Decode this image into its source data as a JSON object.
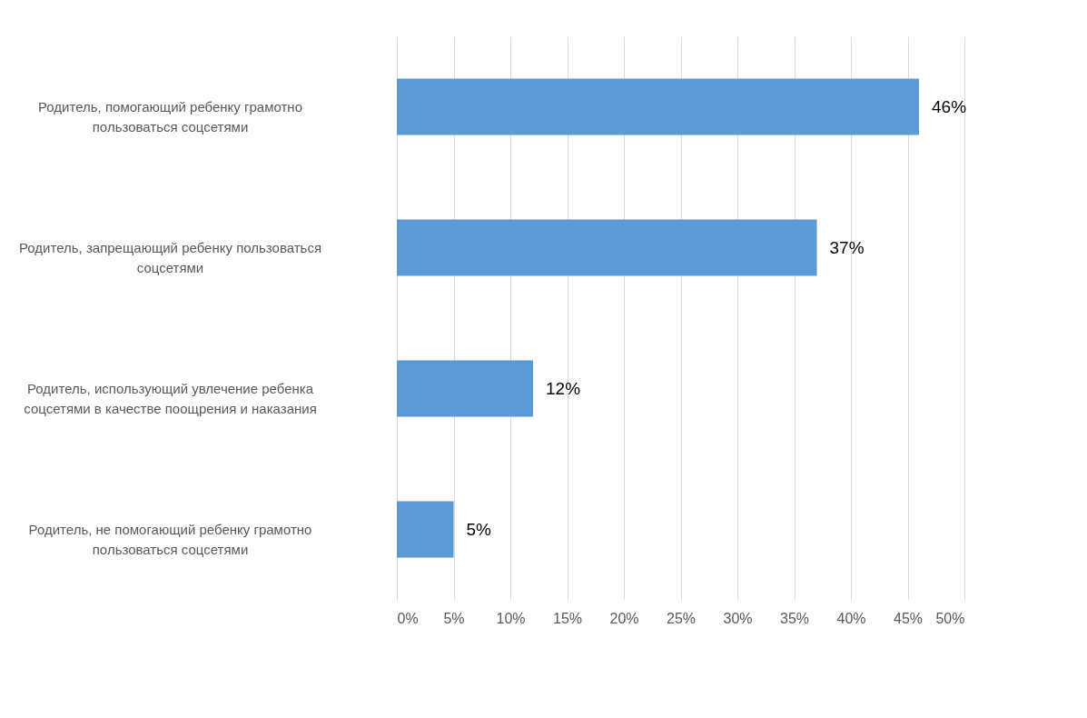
{
  "chart_data": {
    "type": "bar",
    "orientation": "horizontal",
    "categories": [
      "Родитель, помогающий ребенку грамотно пользоваться соцсетями",
      "Родитель, запрещающий ребенку пользоваться соцсетями",
      "Родитель, использующий увлечение ребенка соцсетями в качестве поощрения и наказания",
      "Родитель, не помогающий ребенку грамотно пользоваться соцсетями"
    ],
    "values": [
      46,
      37,
      12,
      5
    ],
    "value_labels": [
      "46%",
      "37%",
      "12%",
      "5%"
    ],
    "color": "#5b9bd5",
    "xlim": [
      0,
      50
    ],
    "xticks": [
      {
        "value": 0,
        "label": "0%"
      },
      {
        "value": 5,
        "label": "5%"
      },
      {
        "value": 10,
        "label": "10%"
      },
      {
        "value": 15,
        "label": "15%"
      },
      {
        "value": 20,
        "label": "20%"
      },
      {
        "value": 25,
        "label": "25%"
      },
      {
        "value": 30,
        "label": "30%"
      },
      {
        "value": 35,
        "label": "35%"
      },
      {
        "value": 40,
        "label": "40%"
      },
      {
        "value": 45,
        "label": "45%"
      },
      {
        "value": 50,
        "label": "50%"
      }
    ],
    "grid": "x"
  }
}
